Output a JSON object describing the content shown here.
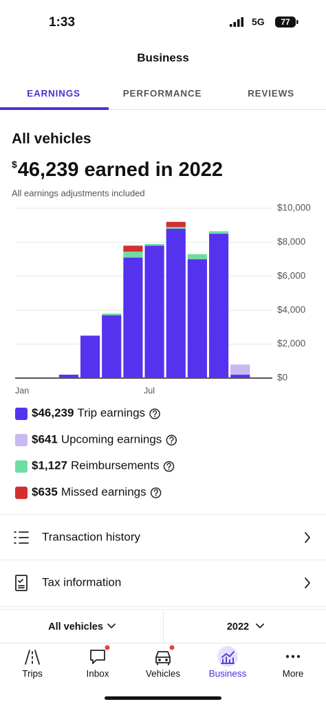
{
  "status_bar": {
    "time": "1:33",
    "network": "5G",
    "battery": "77"
  },
  "header": {
    "title": "Business"
  },
  "tabs": [
    "EARNINGS",
    "PERFORMANCE",
    "REVIEWS"
  ],
  "section_title": "All vehicles",
  "headline": {
    "currency": "$",
    "text": "46,239 earned in 2022"
  },
  "note": "All earnings adjustments included",
  "chart_data": {
    "type": "bar",
    "stacked": true,
    "categories": [
      "Jan",
      null,
      null,
      null,
      null,
      null,
      "Jul",
      null,
      null,
      null,
      null,
      null
    ],
    "series": [
      {
        "name": "Trip earnings",
        "amount_label": "$46,239",
        "color": "#5533ee",
        "values": [
          null,
          null,
          200,
          2500,
          3700,
          7100,
          7800,
          8800,
          7000,
          8500,
          200,
          null
        ]
      },
      {
        "name": "Upcoming earnings",
        "amount_label": "$641",
        "color": "#c8b8f4",
        "values": [
          null,
          null,
          null,
          null,
          null,
          null,
          null,
          null,
          null,
          null,
          600,
          null
        ]
      },
      {
        "name": "Reimbursements",
        "amount_label": "$1,127",
        "color": "#6fdca3",
        "values": [
          null,
          null,
          null,
          null,
          100,
          350,
          100,
          100,
          300,
          150,
          null,
          null
        ]
      },
      {
        "name": "Missed earnings",
        "amount_label": "$635",
        "color": "#d22f2f",
        "values": [
          null,
          null,
          null,
          null,
          null,
          350,
          null,
          300,
          null,
          null,
          null,
          null
        ]
      }
    ],
    "ylim": [
      0,
      10000
    ],
    "yticks": [
      {
        "value": 0,
        "label": "$0"
      },
      {
        "value": 2000,
        "label": "$2,000"
      },
      {
        "value": 4000,
        "label": "$4,000"
      },
      {
        "value": 6000,
        "label": "$6,000"
      },
      {
        "value": 8000,
        "label": "$8,000"
      },
      {
        "value": 10000,
        "label": "$10,000"
      }
    ],
    "grid": true,
    "y_axis_side": "right"
  },
  "menu": [
    "Transaction history",
    "Tax information"
  ],
  "filters": [
    "All vehicles",
    "2022"
  ],
  "nav": [
    "Trips",
    "Inbox",
    "Vehicles",
    "Business",
    "More"
  ]
}
